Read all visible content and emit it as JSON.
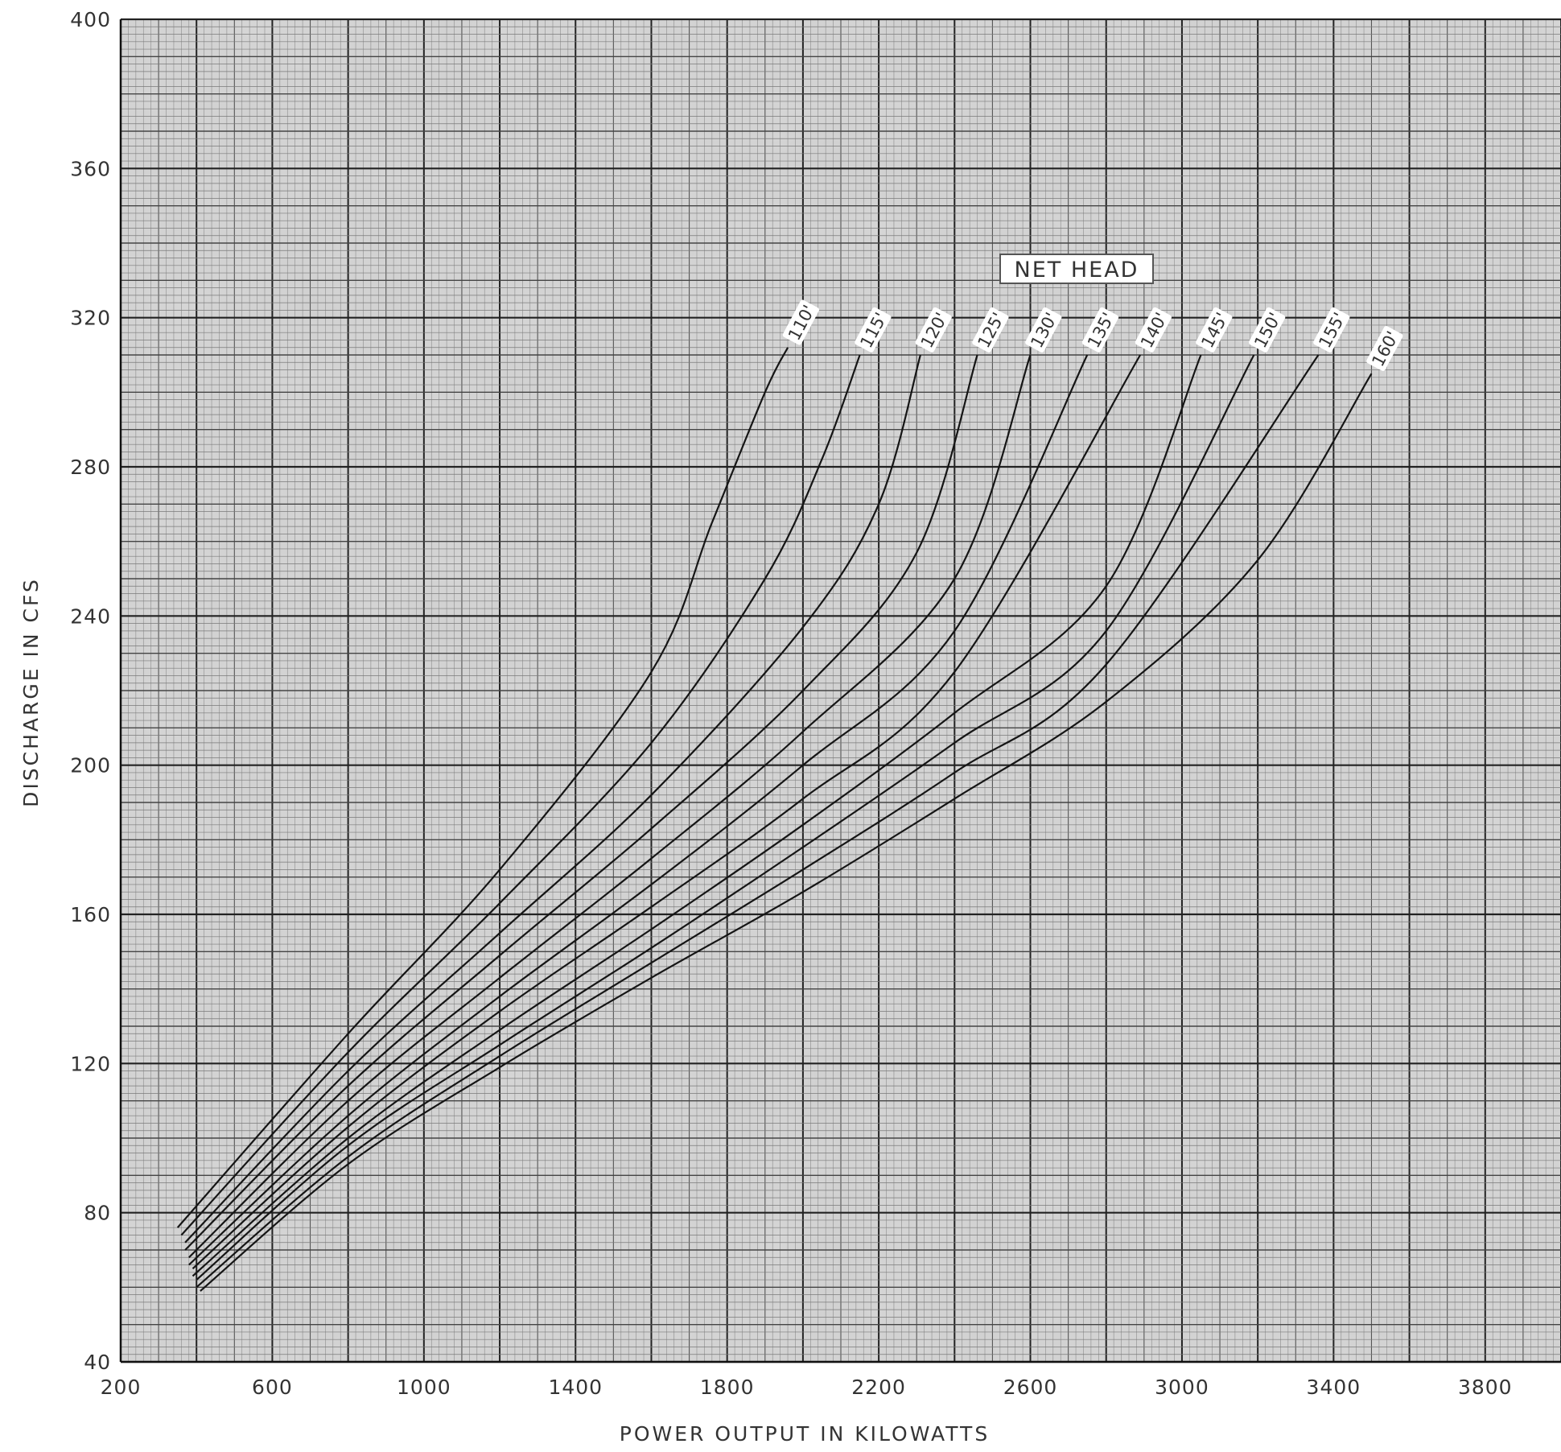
{
  "chart_data": {
    "type": "line",
    "title": "",
    "xlabel": "POWER OUTPUT IN KILOWATTS",
    "ylabel": "DISCHARGE IN CFS",
    "xlim": [
      200,
      4000
    ],
    "ylim": [
      40,
      400
    ],
    "x_ticks": [
      "200",
      "600",
      "1000",
      "1400",
      "1800",
      "2200",
      "2600",
      "3000",
      "3400",
      "3800"
    ],
    "y_ticks": [
      "40",
      "80",
      "120",
      "160",
      "200",
      "240",
      "280",
      "320",
      "360",
      "400"
    ],
    "grid": true,
    "legend_title": "NET HEAD",
    "series": [
      {
        "name": "110'",
        "points": [
          [
            350,
            76
          ],
          [
            800,
            128
          ],
          [
            1200,
            172
          ],
          [
            1600,
            225
          ],
          [
            1760,
            265
          ],
          [
            1900,
            300
          ],
          [
            1960,
            312
          ]
        ]
      },
      {
        "name": "115'",
        "points": [
          [
            360,
            74
          ],
          [
            800,
            123
          ],
          [
            1200,
            163
          ],
          [
            1600,
            206
          ],
          [
            1900,
            250
          ],
          [
            2050,
            282
          ],
          [
            2150,
            310
          ]
        ]
      },
      {
        "name": "120'",
        "points": [
          [
            370,
            72
          ],
          [
            800,
            118
          ],
          [
            1200,
            155
          ],
          [
            1600,
            192
          ],
          [
            2000,
            237
          ],
          [
            2200,
            270
          ],
          [
            2310,
            310
          ]
        ]
      },
      {
        "name": "125'",
        "points": [
          [
            370,
            70
          ],
          [
            800,
            114
          ],
          [
            1200,
            149
          ],
          [
            1600,
            183
          ],
          [
            2000,
            220
          ],
          [
            2300,
            257
          ],
          [
            2460,
            310
          ]
        ]
      },
      {
        "name": "130'",
        "points": [
          [
            380,
            68
          ],
          [
            800,
            110
          ],
          [
            1200,
            143
          ],
          [
            1600,
            175
          ],
          [
            2000,
            209
          ],
          [
            2400,
            250
          ],
          [
            2600,
            310
          ]
        ]
      },
      {
        "name": "135'",
        "points": [
          [
            380,
            66
          ],
          [
            800,
            106
          ],
          [
            1200,
            138
          ],
          [
            1600,
            168
          ],
          [
            2000,
            200
          ],
          [
            2400,
            236
          ],
          [
            2750,
            310
          ]
        ]
      },
      {
        "name": "140'",
        "points": [
          [
            390,
            65
          ],
          [
            800,
            103
          ],
          [
            1200,
            134
          ],
          [
            1600,
            162
          ],
          [
            2000,
            191
          ],
          [
            2400,
            225
          ],
          [
            2890,
            310
          ]
        ]
      },
      {
        "name": "145'",
        "points": [
          [
            390,
            63
          ],
          [
            800,
            100
          ],
          [
            1200,
            129
          ],
          [
            1600,
            156
          ],
          [
            2000,
            184
          ],
          [
            2400,
            214
          ],
          [
            2800,
            248
          ],
          [
            3050,
            310
          ]
        ]
      },
      {
        "name": "150'",
        "points": [
          [
            400,
            62
          ],
          [
            800,
            98
          ],
          [
            1200,
            125
          ],
          [
            1600,
            151
          ],
          [
            2000,
            178
          ],
          [
            2400,
            206
          ],
          [
            2800,
            236
          ],
          [
            3190,
            310
          ]
        ]
      },
      {
        "name": "155'",
        "points": [
          [
            400,
            60
          ],
          [
            800,
            95
          ],
          [
            1200,
            122
          ],
          [
            1600,
            147
          ],
          [
            2000,
            172
          ],
          [
            2400,
            198
          ],
          [
            2800,
            227
          ],
          [
            3360,
            310
          ]
        ]
      },
      {
        "name": "160'",
        "points": [
          [
            410,
            59
          ],
          [
            800,
            93
          ],
          [
            1200,
            119
          ],
          [
            1600,
            143
          ],
          [
            2000,
            166
          ],
          [
            2400,
            191
          ],
          [
            2800,
            217
          ],
          [
            3200,
            255
          ],
          [
            3500,
            305
          ]
        ]
      }
    ]
  }
}
